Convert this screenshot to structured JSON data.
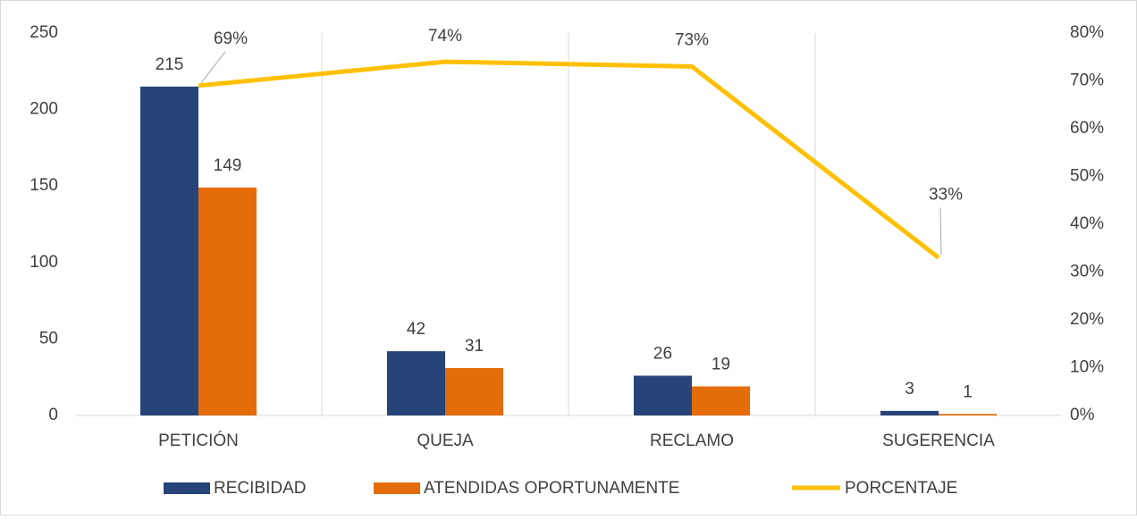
{
  "chart_data": {
    "type": "bar",
    "categories": [
      "PETICIÓN",
      "QUEJA",
      "RECLAMO",
      "SUGERENCIA"
    ],
    "series": [
      {
        "name": "RECIBIDAD",
        "color": "#264478",
        "values": [
          215,
          42,
          26,
          3
        ]
      },
      {
        "name": "ATENDIDAS OPORTUNAMENTE",
        "color": "#E46C0A",
        "values": [
          149,
          31,
          19,
          1
        ]
      },
      {
        "name": "PORCENTAJE",
        "color": "#FFC000",
        "type": "line",
        "axis": "y2",
        "values": [
          69,
          74,
          73,
          33
        ],
        "value_labels": [
          "69%",
          "74%",
          "73%",
          "33%"
        ]
      }
    ],
    "ylim": [
      0,
      250
    ],
    "yticks": [
      0,
      50,
      100,
      150,
      200,
      250
    ],
    "y2lim": [
      0,
      80
    ],
    "y2ticks": [
      {
        "value": 0,
        "label": "0%"
      },
      {
        "value": 10,
        "label": "10%"
      },
      {
        "value": 20,
        "label": "20%"
      },
      {
        "value": 30,
        "label": "30%"
      },
      {
        "value": 40,
        "label": "40%"
      },
      {
        "value": 50,
        "label": "50%"
      },
      {
        "value": 60,
        "label": "60%"
      },
      {
        "value": 70,
        "label": "70%"
      },
      {
        "value": 80,
        "label": "80%"
      }
    ],
    "legend": "bottom"
  }
}
